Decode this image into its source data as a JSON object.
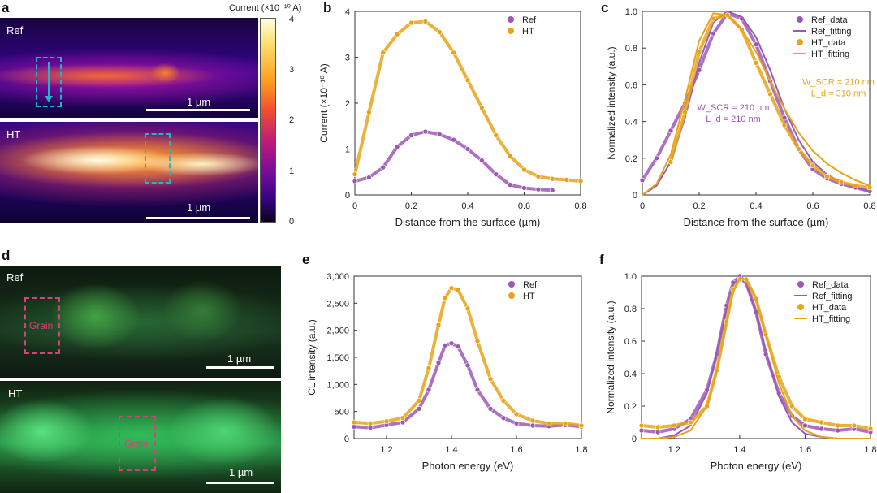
{
  "panels": {
    "a": {
      "letter": "a",
      "ref_label": "Ref",
      "ht_label": "HT",
      "scale_ref": "1 µm",
      "scale_ht": "1 µm",
      "colorbar_title": "Current (×10⁻¹⁰ A)",
      "colorbar_ticks": [
        "4",
        "3",
        "2",
        "1",
        "0"
      ]
    },
    "d": {
      "letter": "d",
      "ref_label": "Ref",
      "ht_label": "HT",
      "scale_ref": "1 µm",
      "scale_ht": "1 µm",
      "grain_label_ref": "Grain",
      "grain_label_ht": "Grain"
    },
    "b": {
      "letter": "b"
    },
    "c": {
      "letter": "c"
    },
    "e": {
      "letter": "e"
    },
    "f": {
      "letter": "f"
    }
  },
  "colors": {
    "ref": "#9b59b6",
    "ht": "#e8a317",
    "dash_cyan": "#1fb5c9",
    "dash_pink": "#d9407a"
  },
  "chart_data": [
    {
      "id": "b",
      "type": "line",
      "xlabel": "Distance from the surface (µm)",
      "ylabel": "Current (×10⁻¹⁰ A)",
      "xlim": [
        0,
        0.8
      ],
      "ylim": [
        0,
        4
      ],
      "xticks": [
        "0",
        "0.2",
        "0.4",
        "0.6",
        "0.8"
      ],
      "yticks": [
        "0",
        "1",
        "2",
        "3",
        "4"
      ],
      "legend": "top-right",
      "series": [
        {
          "name": "Ref",
          "style": "markers",
          "x": [
            0,
            0.05,
            0.1,
            0.15,
            0.2,
            0.25,
            0.3,
            0.35,
            0.4,
            0.45,
            0.5,
            0.55,
            0.6,
            0.65,
            0.7
          ],
          "y": [
            0.3,
            0.38,
            0.6,
            1.05,
            1.3,
            1.38,
            1.32,
            1.2,
            1.0,
            0.75,
            0.45,
            0.22,
            0.15,
            0.12,
            0.1
          ]
        },
        {
          "name": "HT",
          "style": "markers",
          "x": [
            0,
            0.05,
            0.1,
            0.15,
            0.2,
            0.25,
            0.3,
            0.35,
            0.4,
            0.45,
            0.5,
            0.55,
            0.6,
            0.65,
            0.7,
            0.75,
            0.8
          ],
          "y": [
            0.45,
            1.8,
            3.1,
            3.5,
            3.75,
            3.78,
            3.55,
            3.1,
            2.5,
            1.9,
            1.3,
            0.85,
            0.55,
            0.4,
            0.35,
            0.33,
            0.3
          ]
        }
      ]
    },
    {
      "id": "c",
      "type": "line",
      "xlabel": "Distance from the surface (µm)",
      "ylabel": "Normalized intensity (a.u.)",
      "xlim": [
        0,
        0.8
      ],
      "ylim": [
        0,
        1.0
      ],
      "xticks": [
        "0",
        "0.2",
        "0.4",
        "0.6",
        "0.8"
      ],
      "yticks": [
        "0",
        "0.2",
        "0.4",
        "0.6",
        "0.8",
        "1.0"
      ],
      "legend": "top-right",
      "annotations": [
        {
          "lines": [
            "W_SCR = 210 nm",
            "L_d = 310 nm"
          ],
          "series": "HT",
          "x": 0.69,
          "y": 0.6
        },
        {
          "lines": [
            "W_SCR = 210 nm",
            "L_d = 210 nm"
          ],
          "series": "Ref",
          "x": 0.32,
          "y": 0.46
        }
      ],
      "series": [
        {
          "name": "Ref_data",
          "style": "markers",
          "x": [
            0,
            0.05,
            0.1,
            0.15,
            0.2,
            0.25,
            0.3,
            0.35,
            0.4,
            0.45,
            0.5,
            0.55,
            0.6,
            0.65,
            0.7,
            0.75,
            0.8
          ],
          "y": [
            0.08,
            0.2,
            0.35,
            0.5,
            0.68,
            0.88,
            0.99,
            0.96,
            0.82,
            0.62,
            0.42,
            0.25,
            0.14,
            0.09,
            0.06,
            0.04,
            0.02
          ]
        },
        {
          "name": "Ref_fitting",
          "style": "line",
          "x": [
            0,
            0.05,
            0.1,
            0.15,
            0.2,
            0.25,
            0.3,
            0.35,
            0.4,
            0.45,
            0.5,
            0.55,
            0.6,
            0.65,
            0.7,
            0.75,
            0.8
          ],
          "y": [
            0.0,
            0.05,
            0.18,
            0.42,
            0.72,
            0.94,
            1.0,
            0.97,
            0.86,
            0.68,
            0.47,
            0.3,
            0.18,
            0.11,
            0.07,
            0.04,
            0.02
          ]
        },
        {
          "name": "HT_data",
          "style": "markers",
          "x": [
            0.1,
            0.15,
            0.2,
            0.25,
            0.3,
            0.35,
            0.4,
            0.45,
            0.5,
            0.55,
            0.6,
            0.65,
            0.7,
            0.75,
            0.8
          ],
          "y": [
            0.18,
            0.45,
            0.78,
            0.96,
            0.98,
            0.9,
            0.72,
            0.55,
            0.38,
            0.25,
            0.16,
            0.1,
            0.07,
            0.05,
            0.04
          ]
        },
        {
          "name": "HT_fitting",
          "style": "line",
          "x": [
            0,
            0.05,
            0.1,
            0.15,
            0.2,
            0.25,
            0.3,
            0.35,
            0.4,
            0.45,
            0.5,
            0.55,
            0.6,
            0.65,
            0.7,
            0.75,
            0.8
          ],
          "y": [
            0.0,
            0.06,
            0.22,
            0.52,
            0.84,
            0.99,
            0.98,
            0.9,
            0.78,
            0.62,
            0.47,
            0.34,
            0.24,
            0.17,
            0.12,
            0.08,
            0.05
          ]
        }
      ]
    },
    {
      "id": "e",
      "type": "line",
      "xlabel": "Photon energy (eV)",
      "ylabel": "CL intensity (a.u.)",
      "xlim": [
        1.1,
        1.8
      ],
      "ylim": [
        0,
        3000
      ],
      "xticks": [
        "1.2",
        "1.4",
        "1.6",
        "1.8"
      ],
      "yticks": [
        "0",
        "500",
        "1,000",
        "1,500",
        "2,000",
        "2,500",
        "3,000"
      ],
      "legend": "top-right",
      "series": [
        {
          "name": "Ref",
          "style": "markers",
          "x": [
            1.1,
            1.15,
            1.2,
            1.25,
            1.3,
            1.33,
            1.36,
            1.38,
            1.4,
            1.42,
            1.45,
            1.48,
            1.52,
            1.56,
            1.6,
            1.65,
            1.7,
            1.75,
            1.8
          ],
          "y": [
            220,
            200,
            250,
            300,
            550,
            900,
            1400,
            1720,
            1760,
            1700,
            1350,
            900,
            550,
            380,
            280,
            240,
            230,
            250,
            220
          ]
        },
        {
          "name": "HT",
          "style": "markers",
          "x": [
            1.1,
            1.15,
            1.2,
            1.25,
            1.3,
            1.33,
            1.36,
            1.38,
            1.4,
            1.42,
            1.45,
            1.48,
            1.52,
            1.56,
            1.6,
            1.65,
            1.7,
            1.75,
            1.8
          ],
          "y": [
            300,
            280,
            320,
            380,
            700,
            1300,
            2100,
            2600,
            2780,
            2750,
            2400,
            1800,
            1100,
            700,
            450,
            330,
            280,
            280,
            240
          ]
        }
      ]
    },
    {
      "id": "f",
      "type": "line",
      "xlabel": "Photon energy (eV)",
      "ylabel": "Normalized intensity (a.u.)",
      "xlim": [
        1.1,
        1.8
      ],
      "ylim": [
        0,
        1.0
      ],
      "xticks": [
        "1.2",
        "1.4",
        "1.6",
        "1.8"
      ],
      "yticks": [
        "0",
        "0.2",
        "0.4",
        "0.6",
        "0.8",
        "1.0"
      ],
      "legend": "top-right",
      "series": [
        {
          "name": "Ref_data",
          "style": "markers",
          "x": [
            1.1,
            1.15,
            1.2,
            1.25,
            1.3,
            1.33,
            1.36,
            1.38,
            1.4,
            1.42,
            1.45,
            1.48,
            1.52,
            1.56,
            1.6,
            1.65,
            1.7,
            1.75,
            1.8
          ],
          "y": [
            0.05,
            0.04,
            0.06,
            0.12,
            0.3,
            0.52,
            0.82,
            0.96,
            1.0,
            0.96,
            0.78,
            0.52,
            0.28,
            0.14,
            0.08,
            0.06,
            0.05,
            0.06,
            0.04
          ]
        },
        {
          "name": "Ref_fitting",
          "style": "line",
          "x": [
            1.1,
            1.15,
            1.2,
            1.25,
            1.3,
            1.33,
            1.36,
            1.38,
            1.4,
            1.42,
            1.45,
            1.48,
            1.52,
            1.56,
            1.6,
            1.65,
            1.7,
            1.75,
            1.8
          ],
          "y": [
            0.0,
            0.0,
            0.02,
            0.08,
            0.28,
            0.52,
            0.8,
            0.95,
            0.99,
            0.95,
            0.78,
            0.54,
            0.26,
            0.1,
            0.03,
            0.01,
            0.0,
            0.0,
            0.0
          ]
        },
        {
          "name": "HT_data",
          "style": "markers",
          "x": [
            1.1,
            1.15,
            1.2,
            1.25,
            1.3,
            1.33,
            1.36,
            1.38,
            1.4,
            1.42,
            1.45,
            1.48,
            1.52,
            1.56,
            1.6,
            1.65,
            1.7,
            1.75,
            1.8
          ],
          "y": [
            0.08,
            0.07,
            0.08,
            0.1,
            0.2,
            0.42,
            0.72,
            0.92,
            0.98,
            0.98,
            0.86,
            0.64,
            0.38,
            0.2,
            0.12,
            0.1,
            0.08,
            0.08,
            0.06
          ]
        },
        {
          "name": "HT_fitting",
          "style": "line",
          "x": [
            1.1,
            1.15,
            1.2,
            1.25,
            1.3,
            1.33,
            1.36,
            1.38,
            1.4,
            1.42,
            1.45,
            1.48,
            1.52,
            1.56,
            1.6,
            1.65,
            1.7,
            1.75,
            1.8
          ],
          "y": [
            0.0,
            0.0,
            0.01,
            0.05,
            0.2,
            0.42,
            0.72,
            0.9,
            0.99,
            0.98,
            0.86,
            0.64,
            0.34,
            0.14,
            0.05,
            0.01,
            0.0,
            0.0,
            0.0
          ]
        }
      ]
    }
  ]
}
